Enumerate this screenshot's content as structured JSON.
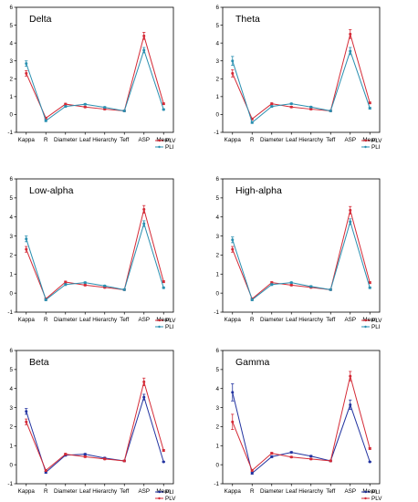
{
  "chart_data": [
    {
      "type": "line",
      "title": "Delta",
      "categories": [
        "Kappa",
        "R",
        "Diameter",
        "Leaf",
        "Hierarchy",
        "Teff",
        "ASP",
        "Mean"
      ],
      "ylim": [
        -1,
        6
      ],
      "yticks": [
        "-1",
        "0",
        "1",
        "2",
        "3",
        "4",
        "5",
        "6"
      ],
      "grid": false,
      "legend_position": "bottom-right",
      "series": [
        {
          "name": "PLV",
          "color": "#d42a36",
          "values": [
            2.3,
            -0.2,
            0.58,
            0.42,
            0.3,
            0.2,
            4.4,
            0.6
          ],
          "err": [
            0.15,
            0.05,
            0.05,
            0.04,
            0.04,
            0.04,
            0.2,
            0.05
          ]
        },
        {
          "name": "PLI",
          "color": "#2a8fb0",
          "values": [
            2.85,
            -0.35,
            0.45,
            0.57,
            0.4,
            0.2,
            3.6,
            0.28
          ],
          "err": [
            0.15,
            0.05,
            0.05,
            0.04,
            0.04,
            0.04,
            0.15,
            0.04
          ]
        }
      ]
    },
    {
      "type": "line",
      "title": "Theta",
      "categories": [
        "Kappa",
        "R",
        "Diameter",
        "Leaf",
        "Hierarchy",
        "Teff",
        "ASP",
        "Mean"
      ],
      "ylim": [
        -1,
        6
      ],
      "yticks": [
        "-1",
        "0",
        "1",
        "2",
        "3",
        "4",
        "5",
        "6"
      ],
      "grid": false,
      "legend_position": "bottom-right",
      "series": [
        {
          "name": "PLV",
          "color": "#d42a36",
          "values": [
            2.3,
            -0.25,
            0.6,
            0.42,
            0.3,
            0.2,
            4.5,
            0.65
          ],
          "err": [
            0.2,
            0.05,
            0.05,
            0.04,
            0.04,
            0.04,
            0.25,
            0.05
          ]
        },
        {
          "name": "PLI",
          "color": "#2a8fb0",
          "values": [
            3.0,
            -0.45,
            0.45,
            0.6,
            0.42,
            0.2,
            3.55,
            0.35
          ],
          "err": [
            0.25,
            0.05,
            0.05,
            0.04,
            0.04,
            0.04,
            0.2,
            0.05
          ]
        }
      ]
    },
    {
      "type": "line",
      "title": "Low-alpha",
      "categories": [
        "Kappa",
        "R",
        "Diameter",
        "Leaf",
        "Hierarchy",
        "Teff",
        "ASP",
        "Mean"
      ],
      "ylim": [
        -1,
        6
      ],
      "yticks": [
        "-1",
        "0",
        "1",
        "2",
        "3",
        "4",
        "5",
        "6"
      ],
      "grid": false,
      "legend_position": "bottom-right",
      "series": [
        {
          "name": "PLV",
          "color": "#d42a36",
          "values": [
            2.3,
            -0.3,
            0.58,
            0.42,
            0.3,
            0.18,
            4.4,
            0.6
          ],
          "err": [
            0.15,
            0.05,
            0.05,
            0.04,
            0.04,
            0.04,
            0.2,
            0.05
          ]
        },
        {
          "name": "PLI",
          "color": "#2a8fb0",
          "values": [
            2.85,
            -0.35,
            0.45,
            0.55,
            0.38,
            0.18,
            3.65,
            0.28
          ],
          "err": [
            0.15,
            0.05,
            0.05,
            0.04,
            0.04,
            0.04,
            0.15,
            0.04
          ]
        }
      ]
    },
    {
      "type": "line",
      "title": "High-alpha",
      "categories": [
        "Kappa",
        "R",
        "Diameter",
        "Leaf",
        "Hierarchy",
        "Teff",
        "ASP",
        "Mean"
      ],
      "ylim": [
        -1,
        6
      ],
      "yticks": [
        "-1",
        "0",
        "1",
        "2",
        "3",
        "4",
        "5",
        "6"
      ],
      "grid": false,
      "legend_position": "bottom-right",
      "series": [
        {
          "name": "PLV",
          "color": "#d42a36",
          "values": [
            2.3,
            -0.3,
            0.55,
            0.42,
            0.3,
            0.18,
            4.35,
            0.55
          ],
          "err": [
            0.15,
            0.05,
            0.05,
            0.04,
            0.04,
            0.04,
            0.2,
            0.05
          ]
        },
        {
          "name": "PLI",
          "color": "#2a8fb0",
          "values": [
            2.8,
            -0.35,
            0.45,
            0.55,
            0.35,
            0.18,
            3.75,
            0.28
          ],
          "err": [
            0.15,
            0.05,
            0.05,
            0.04,
            0.04,
            0.04,
            0.15,
            0.04
          ]
        }
      ]
    },
    {
      "type": "line",
      "title": "Beta",
      "categories": [
        "Kappa",
        "R",
        "Diameter",
        "Leaf",
        "Hierarchy",
        "Teff",
        "ASP",
        "Mean"
      ],
      "ylim": [
        -1,
        6
      ],
      "yticks": [
        "-1",
        "0",
        "1",
        "2",
        "3",
        "4",
        "5",
        "6"
      ],
      "grid": false,
      "legend_position": "bottom-right",
      "series": [
        {
          "name": "PLI",
          "color": "#2233a0",
          "values": [
            2.8,
            -0.4,
            0.5,
            0.55,
            0.35,
            0.2,
            3.55,
            0.15
          ],
          "err": [
            0.15,
            0.05,
            0.05,
            0.04,
            0.04,
            0.04,
            0.15,
            0.03
          ]
        },
        {
          "name": "PLV",
          "color": "#d42a36",
          "values": [
            2.25,
            -0.3,
            0.55,
            0.42,
            0.3,
            0.2,
            4.35,
            0.75
          ],
          "err": [
            0.15,
            0.05,
            0.05,
            0.04,
            0.04,
            0.04,
            0.2,
            0.05
          ]
        }
      ]
    },
    {
      "type": "line",
      "title": "Gamma",
      "categories": [
        "Kappa",
        "R",
        "Diameter",
        "Leaf",
        "Hierarchy",
        "Teff",
        "ASP",
        "Mean"
      ],
      "ylim": [
        -1,
        6
      ],
      "yticks": [
        "-1",
        "0",
        "1",
        "2",
        "3",
        "4",
        "5",
        "6"
      ],
      "grid": false,
      "legend_position": "bottom-right",
      "series": [
        {
          "name": "PLI",
          "color": "#2233a0",
          "values": [
            3.8,
            -0.45,
            0.42,
            0.65,
            0.45,
            0.2,
            3.15,
            0.15
          ],
          "err": [
            0.45,
            0.05,
            0.05,
            0.04,
            0.04,
            0.04,
            0.25,
            0.03
          ]
        },
        {
          "name": "PLV",
          "color": "#d42a36",
          "values": [
            2.25,
            -0.3,
            0.6,
            0.4,
            0.3,
            0.2,
            4.65,
            0.85
          ],
          "err": [
            0.4,
            0.05,
            0.05,
            0.04,
            0.04,
            0.04,
            0.25,
            0.05
          ]
        }
      ]
    }
  ]
}
